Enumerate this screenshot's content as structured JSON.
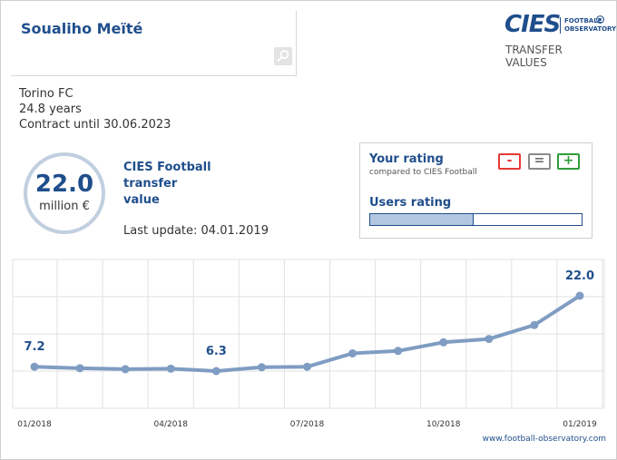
{
  "player": {
    "name": "Soualiho Meïté"
  },
  "logo": {
    "brand": "CIES",
    "line1": "FOOTBALL",
    "line2": "OBSERVATORY",
    "tagline1": "TRANSFER",
    "tagline2": "VALUES"
  },
  "info": {
    "club": "Torino FC",
    "age": "24.8 years",
    "contract": "Contract until 30.06.2023"
  },
  "value": {
    "number": "22.0",
    "unit": "million €",
    "title_line1": "CIES Football",
    "title_line2": "transfer",
    "title_line3": "value",
    "last_update": "Last update: 04.01.2019"
  },
  "rating": {
    "your_rating": "Your rating",
    "compared": "compared to CIES Football",
    "minus_label": "-",
    "equal_label": "=",
    "plus_label": "+",
    "users_rating": "Users rating",
    "users_fill": 0.49
  },
  "footer": {
    "source": "www.football-observatory.com"
  },
  "colors": {
    "accent": "#1f4e8c",
    "line": "#7f9cc2",
    "grid": "#e2e2e2"
  },
  "chart_data": {
    "type": "line",
    "x": [
      "01/2018",
      "02/2018",
      "03/2018",
      "04/2018",
      "05/2018",
      "06/2018",
      "07/2018",
      "08/2018",
      "09/2018",
      "10/2018",
      "11/2018",
      "12/2018",
      "01/2019"
    ],
    "values": [
      7.2,
      6.9,
      6.7,
      6.8,
      6.3,
      7.1,
      7.2,
      10.0,
      10.5,
      12.3,
      13.0,
      15.9,
      22.0
    ],
    "data_labels": [
      {
        "index": 0,
        "text": "7.2"
      },
      {
        "index": 4,
        "text": "6.3"
      },
      {
        "index": 12,
        "text": "22.0"
      }
    ],
    "tick_labels": [
      {
        "index": 0,
        "text": "01/2018"
      },
      {
        "index": 3,
        "text": "04/2018"
      },
      {
        "index": 6,
        "text": "07/2018"
      },
      {
        "index": 9,
        "text": "10/2018"
      },
      {
        "index": 12,
        "text": "01/2019"
      }
    ],
    "grid": true
  }
}
